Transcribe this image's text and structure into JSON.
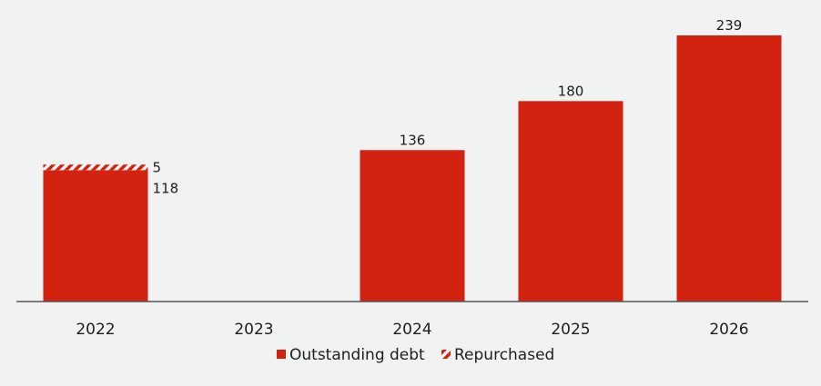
{
  "chart_data": {
    "type": "bar",
    "stacked": true,
    "categories": [
      "2022",
      "2023",
      "2024",
      "2025",
      "2026"
    ],
    "series": [
      {
        "name": "Outstanding debt",
        "values": [
          118,
          null,
          136,
          180,
          239
        ],
        "color": "#d42211",
        "pattern": "solid"
      },
      {
        "name": "Repurchased",
        "values": [
          5,
          null,
          null,
          null,
          null
        ],
        "color": "#d42211",
        "pattern": "hatched"
      }
    ],
    "data_labels": {
      "2022": [
        "5",
        "118"
      ],
      "2024": [
        "136"
      ],
      "2025": [
        "180"
      ],
      "2026": [
        "239"
      ]
    },
    "ylim": [
      0,
      245
    ],
    "grid": false,
    "legend_position": "bottom",
    "title": "",
    "xlabel": "",
    "ylabel": ""
  }
}
